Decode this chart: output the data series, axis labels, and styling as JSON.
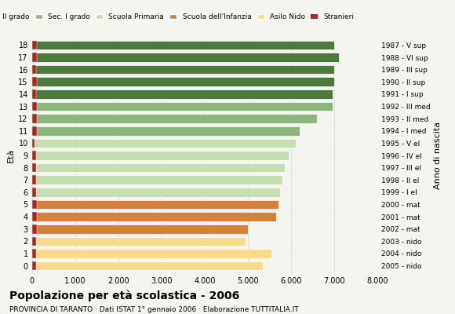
{
  "ages": [
    18,
    17,
    16,
    15,
    14,
    13,
    12,
    11,
    10,
    9,
    8,
    7,
    6,
    5,
    4,
    3,
    2,
    1,
    0
  ],
  "anno_nascita": [
    "1987 - V sup",
    "1988 - VI sup",
    "1989 - III sup",
    "1990 - II sup",
    "1991 - I sup",
    "1992 - III med",
    "1993 - II med",
    "1994 - I med",
    "1995 - V el",
    "1996 - IV el",
    "1997 - III el",
    "1998 - II el",
    "1999 - I el",
    "2000 - mat",
    "2001 - mat",
    "2002 - mat",
    "2003 - nido",
    "2004 - nido",
    "2005 - nido"
  ],
  "values": [
    7000,
    7100,
    7000,
    7000,
    6950,
    6950,
    6600,
    6200,
    6100,
    5950,
    5850,
    5800,
    5750,
    5700,
    5650,
    5000,
    4950,
    5550,
    5350
  ],
  "stranieri": [
    120,
    120,
    100,
    110,
    100,
    110,
    110,
    110,
    70,
    90,
    100,
    90,
    90,
    120,
    110,
    110,
    90,
    100,
    90
  ],
  "bar_colors": {
    "sec2": "#4d7a3c",
    "sec1": "#8ab87c",
    "primaria": "#c5ddb0",
    "infanzia": "#d4813a",
    "nido": "#f9d98c",
    "stranieri": "#b22222"
  },
  "category_colors": [
    "#4d7a3c",
    "#4d7a3c",
    "#4d7a3c",
    "#4d7a3c",
    "#4d7a3c",
    "#8ab87c",
    "#8ab87c",
    "#8ab87c",
    "#c5ddb0",
    "#c5ddb0",
    "#c5ddb0",
    "#c5ddb0",
    "#c5ddb0",
    "#d4813a",
    "#d4813a",
    "#d4813a",
    "#f9d98c",
    "#f9d98c",
    "#f9d98c"
  ],
  "title": "Popolazione per età scolastica - 2006",
  "subtitle": "PROVINCIA DI TARANTO · Dati ISTAT 1° gennaio 2006 · Elaborazione TUTTITALIA.IT",
  "legend_labels": [
    "Sec. II grado",
    "Sec. I grado",
    "Scuola Primaria",
    "Scuola dell'Infanzia",
    "Asilo Nido",
    "Stranieri"
  ],
  "legend_colors": [
    "#4d7a3c",
    "#8ab87c",
    "#c5ddb0",
    "#d4813a",
    "#f9d98c",
    "#b22222"
  ],
  "xlim": [
    0,
    8000
  ],
  "xticks": [
    0,
    1000,
    2000,
    3000,
    4000,
    5000,
    6000,
    7000,
    8000
  ],
  "xtick_labels": [
    "0",
    "1.000",
    "2.000",
    "3.000",
    "4.000",
    "5.000",
    "6.000",
    "7.000",
    "8.000"
  ],
  "eta_label": "Età",
  "anno_label": "Anno di nascita",
  "grid_color": "#cccccc",
  "bg_color": "#f5f5f0",
  "bar_height": 0.75
}
